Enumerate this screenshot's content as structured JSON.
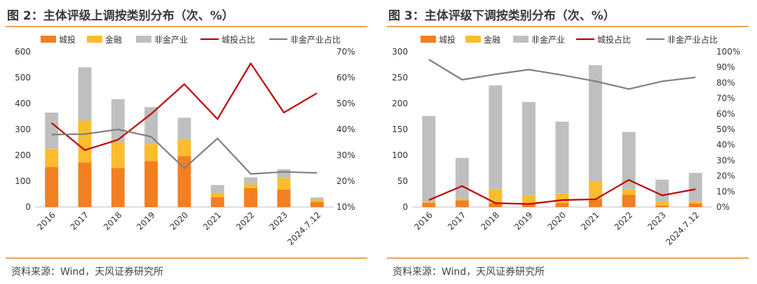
{
  "charts": [
    {
      "title": "图 2：主体评级上调按类别分布（次、%）",
      "source": "资料来源：Wind，天风证券研究所"
    },
    {
      "title": "图 3：主体评级下调按类别分布（次、%）",
      "source": "资料来源：Wind，天风证券研究所"
    }
  ],
  "colors": {
    "chengtou": "#f47f20",
    "jinrong": "#fbbd2c",
    "feijinrong": "#bfbfbf",
    "chengtou_ratio": "#c00000",
    "feijinrong_ratio": "#808080",
    "rule": "#f0a25a"
  },
  "chart_data": [
    {
      "type": "bar",
      "stacked": true,
      "categories": [
        "2016",
        "2017",
        "2018",
        "2019",
        "2020",
        "2021",
        "2022",
        "2023",
        "2024.7.12"
      ],
      "y_left": {
        "min": 0,
        "max": 600,
        "step": 100
      },
      "y_right": {
        "min": 0.1,
        "max": 0.7,
        "step": 0.1
      },
      "legend": [
        "城投",
        "金融",
        "非金产业",
        "城投占比",
        "非金产业占比"
      ],
      "series": [
        {
          "name": "城投",
          "kind": "bar",
          "axis": "left",
          "values": [
            155,
            172,
            150,
            178,
            197,
            38,
            73,
            68,
            20
          ]
        },
        {
          "name": "金融",
          "kind": "bar",
          "axis": "left",
          "values": [
            70,
            162,
            100,
            65,
            63,
            17,
            15,
            45,
            7
          ]
        },
        {
          "name": "非金产业",
          "kind": "bar",
          "axis": "left",
          "values": [
            140,
            206,
            167,
            143,
            85,
            30,
            27,
            33,
            10
          ]
        },
        {
          "name": "城投占比",
          "kind": "line",
          "axis": "right",
          "values": [
            0.425,
            0.32,
            0.36,
            0.46,
            0.575,
            0.44,
            0.655,
            0.465,
            0.54
          ]
        },
        {
          "name": "非金产业占比",
          "kind": "line",
          "axis": "right",
          "values": [
            0.38,
            0.382,
            0.4,
            0.372,
            0.25,
            0.365,
            0.228,
            0.236,
            0.232
          ]
        }
      ]
    },
    {
      "type": "bar",
      "stacked": true,
      "categories": [
        "2016",
        "2017",
        "2018",
        "2019",
        "2020",
        "2021",
        "2022",
        "2023",
        "2024.7.12"
      ],
      "y_left": {
        "min": 0,
        "max": 300,
        "step": 50
      },
      "y_right": {
        "min": 0,
        "max": 1.0,
        "step": 0.1
      },
      "legend": [
        "城投",
        "金融",
        "非金产业",
        "城投占比",
        "非金产业占比"
      ],
      "series": [
        {
          "name": "城投",
          "kind": "bar",
          "axis": "left",
          "values": [
            8,
            13,
            7,
            6,
            8,
            15,
            24,
            3,
            7
          ]
        },
        {
          "name": "金融",
          "kind": "bar",
          "axis": "left",
          "values": [
            2,
            3,
            27,
            16,
            18,
            35,
            10,
            7,
            3
          ]
        },
        {
          "name": "非金产业",
          "kind": "bar",
          "axis": "left",
          "values": [
            166,
            79,
            201,
            181,
            139,
            224,
            111,
            43,
            56
          ]
        },
        {
          "name": "城投占比",
          "kind": "line",
          "axis": "right",
          "values": [
            0.045,
            0.135,
            0.025,
            0.02,
            0.045,
            0.05,
            0.175,
            0.075,
            0.115
          ]
        },
        {
          "name": "非金产业占比",
          "kind": "line",
          "axis": "right",
          "values": [
            0.95,
            0.82,
            0.855,
            0.885,
            0.85,
            0.81,
            0.76,
            0.81,
            0.835
          ]
        }
      ]
    }
  ]
}
